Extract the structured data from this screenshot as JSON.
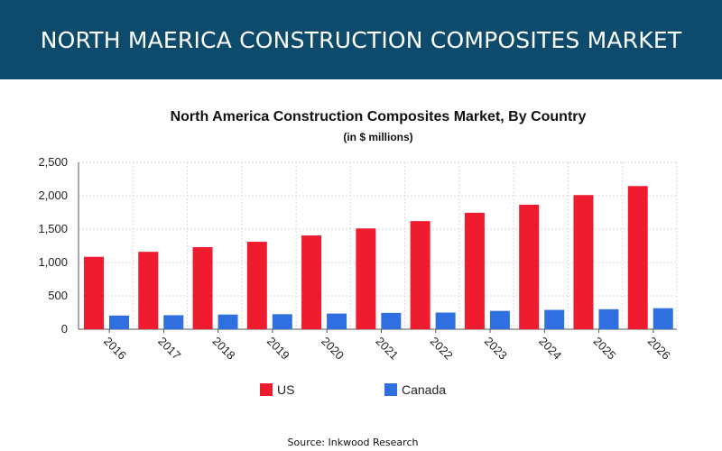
{
  "banner": {
    "title": "NORTH MAERICA CONSTRUCTION COMPOSITES MARKET"
  },
  "chart_data": {
    "type": "bar",
    "title": "North America Construction Composites Market, By Country",
    "subtitle": "(in $ millions)",
    "categories": [
      "2016",
      "2017",
      "2018",
      "2019",
      "2020",
      "2021",
      "2022",
      "2023",
      "2024",
      "2025",
      "2026"
    ],
    "series": [
      {
        "name": "US",
        "color": "#ee1c2e",
        "values": [
          1085,
          1160,
          1230,
          1310,
          1405,
          1510,
          1620,
          1745,
          1865,
          2010,
          2145
        ]
      },
      {
        "name": "Canada",
        "color": "#2f6fe0",
        "values": [
          205,
          210,
          220,
          225,
          235,
          245,
          250,
          275,
          290,
          300,
          315
        ]
      }
    ],
    "ylim": [
      0,
      2500
    ],
    "yticks": [
      "0",
      "500",
      "1,000",
      "1,500",
      "2,000",
      "2,500"
    ],
    "grid": true,
    "legend": "bottom"
  },
  "footer": {
    "source": "Source: Inkwood Research"
  }
}
